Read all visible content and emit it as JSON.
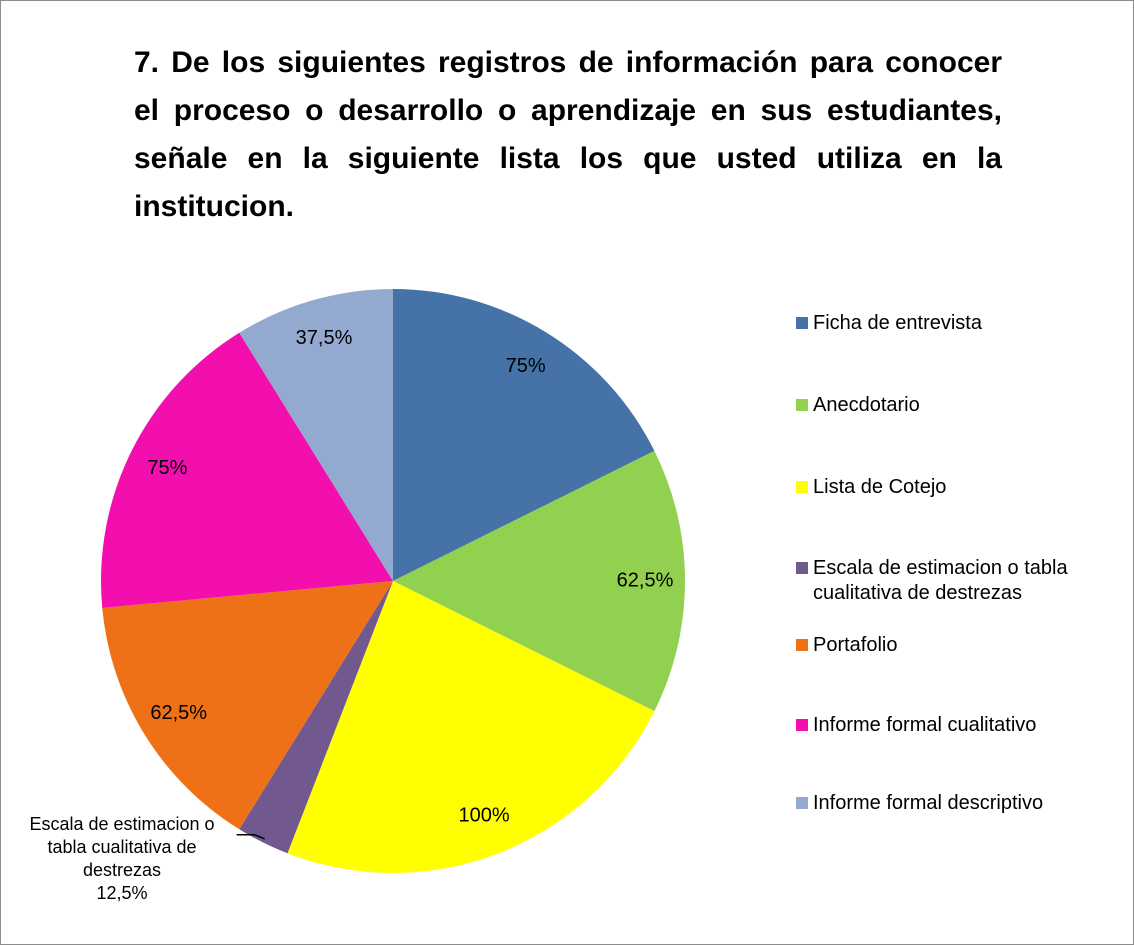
{
  "chart_data": {
    "type": "pie",
    "title": "7. De los siguientes registros de información para conocer el proceso o desarrollo o aprendizaje en sus estudiantes, señale en la siguiente lista los que usted utiliza en la institucion.",
    "categories": [
      "Ficha de entrevista",
      "Anecdotario",
      "Lista de Cotejo",
      "Escala de estimacion o tabla cualitativa de destrezas",
      "Portafolio",
      "Informe formal cualitativo",
      "Informe formal descriptivo"
    ],
    "values": [
      75,
      62.5,
      100,
      12.5,
      62.5,
      75,
      37.5
    ],
    "value_labels": [
      "75%",
      "62,5%",
      "100%",
      "12,5%",
      "62,5%",
      "75%",
      "37,5%"
    ],
    "colors": [
      "#4572a7",
      "#92d050",
      "#ffff00",
      "#71588f",
      "#ef7117",
      "#f30fae",
      "#93a9cf"
    ],
    "legend": "right"
  }
}
